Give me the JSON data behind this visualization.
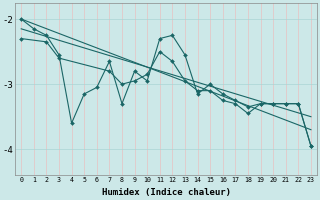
{
  "title": "",
  "xlabel": "Humidex (Indice chaleur)",
  "xlim": [
    -0.5,
    23.5
  ],
  "ylim": [
    -4.4,
    -1.75
  ],
  "bg_color": "#cce8e8",
  "line_color": "#1a6666",
  "grid_color": "#aad4d4",
  "xticks": [
    0,
    1,
    2,
    3,
    4,
    5,
    6,
    7,
    8,
    9,
    10,
    11,
    12,
    13,
    14,
    15,
    16,
    17,
    18,
    19,
    20,
    21,
    22,
    23
  ],
  "yticks": [
    -4,
    -3,
    -2
  ],
  "series": [
    {
      "x": [
        0,
        1,
        2,
        3,
        4,
        5,
        6,
        7,
        8,
        9,
        10,
        11,
        12,
        13,
        14,
        15,
        16,
        17,
        18,
        19,
        20,
        21,
        22,
        23
      ],
      "y": [
        -2.0,
        -2.15,
        -2.25,
        -2.55,
        -3.6,
        -3.15,
        -3.05,
        -2.65,
        -3.3,
        -2.8,
        -2.95,
        -2.3,
        -2.25,
        -2.55,
        -3.15,
        -3.0,
        -3.15,
        -3.25,
        -3.35,
        -3.3,
        -3.3,
        -3.3,
        -3.3,
        -3.95
      ],
      "marker": true
    },
    {
      "x": [
        0,
        23
      ],
      "y": [
        -2.0,
        -3.7
      ],
      "marker": false
    },
    {
      "x": [
        0,
        23
      ],
      "y": [
        -2.15,
        -3.5
      ],
      "marker": false
    },
    {
      "x": [
        0,
        2,
        3,
        7,
        8,
        9,
        10,
        11,
        12,
        13,
        14,
        15,
        16,
        17,
        18,
        19,
        20,
        21,
        22,
        23
      ],
      "y": [
        -2.3,
        -2.35,
        -2.6,
        -2.8,
        -3.0,
        -2.95,
        -2.85,
        -2.5,
        -2.65,
        -2.95,
        -3.1,
        -3.1,
        -3.25,
        -3.3,
        -3.45,
        -3.3,
        -3.3,
        -3.3,
        -3.3,
        -3.95
      ],
      "marker": true
    }
  ]
}
